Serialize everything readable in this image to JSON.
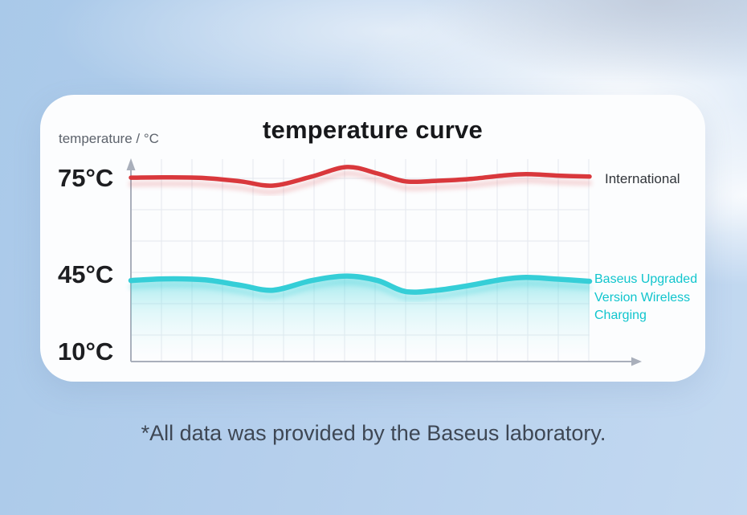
{
  "page": {
    "caption": "*All data was provided by the Baseus laboratory."
  },
  "card": {
    "title": "temperature curve",
    "axis_label": "temperature / °C",
    "ticks": [
      "75°C",
      "45°C",
      "10°C"
    ]
  },
  "colors": {
    "international_red": "#d9383c",
    "baseus_cyan": "#35ced7",
    "baseus_legend_teal": "#10c5cd",
    "background_blue": "#b0cce9",
    "card_white": "#fcfdfe",
    "grid_gray": "#e4e8ee",
    "axis_gray": "#a9afbb"
  },
  "chart_data": {
    "type": "line",
    "title": "temperature curve",
    "ylabel": "temperature / °C",
    "yticks": [
      75,
      45,
      10
    ],
    "grid": true,
    "legend_position": "right",
    "x_percent": [
      0,
      7.4,
      16.1,
      24.0,
      31.0,
      39.4,
      47.1,
      53.8,
      59.9,
      66.9,
      73.9,
      80.9,
      86.2,
      93.2,
      100
    ],
    "series": [
      {
        "name": "International",
        "color": "#d9383c",
        "area_fill": false,
        "values": [
          74.9,
          75.0,
          74.8,
          73.8,
          72.6,
          75.2,
          78.0,
          76.1,
          73.8,
          74.0,
          74.5,
          75.5,
          75.9,
          75.5,
          75.2
        ]
      },
      {
        "name": "Baseus Upgraded Version Wireless Charging",
        "color": "#35ced7",
        "area_fill": true,
        "values": [
          45.0,
          45.5,
          45.2,
          43.6,
          42.2,
          45.0,
          46.3,
          45.0,
          41.8,
          42.2,
          43.6,
          45.3,
          45.9,
          45.4,
          44.8
        ]
      }
    ]
  }
}
